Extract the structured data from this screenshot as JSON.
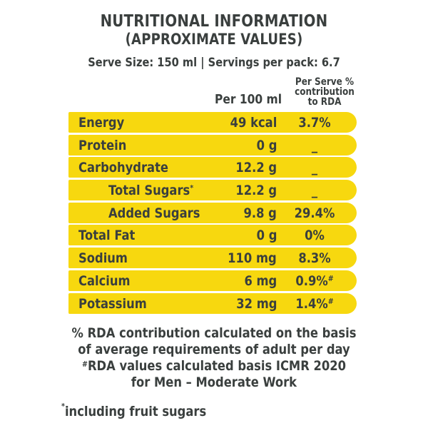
{
  "header": {
    "title": "NUTRITIONAL INFORMATION",
    "subtitle": "(APPROXIMATE VALUES)",
    "serve_size": "Serve Size: 150 ml | Servings per pack: 6.7"
  },
  "columns": {
    "per100": "Per 100 ml",
    "rda_line1": "Per Serve %",
    "rda_line2": "contribution",
    "rda_line3": "to RDA"
  },
  "rows": [
    {
      "name": "Energy",
      "per100": "49 kcal",
      "rda": "3.7%",
      "rda_mark": ""
    },
    {
      "name": "Protein",
      "per100": "0 g",
      "rda": "_",
      "rda_mark": ""
    },
    {
      "name": "Carbohydrate",
      "per100": "12.2 g",
      "rda": "_",
      "rda_mark": ""
    },
    {
      "name": "Total Sugars",
      "name_mark": "*",
      "per100": "12.2 g",
      "rda": "_",
      "rda_mark": ""
    },
    {
      "name": "Added Sugars",
      "per100": "9.8 g",
      "rda": "29.4%",
      "rda_mark": ""
    },
    {
      "name": "Total Fat",
      "per100": "0 g",
      "rda": "0%",
      "rda_mark": ""
    },
    {
      "name": "Sodium",
      "per100": "110 mg",
      "rda": "8.3%",
      "rda_mark": ""
    },
    {
      "name": "Calcium",
      "per100": "6 mg",
      "rda": "0.9%",
      "rda_mark": "#"
    },
    {
      "name": "Potassium",
      "per100": "32 mg",
      "rda": "1.4%",
      "rda_mark": "#"
    }
  ],
  "notes": {
    "line1": "% RDA contribution calculated on the basis",
    "line2": "of average requirements of adult per day",
    "line3_mark": "#",
    "line3": "RDA values calculated basis ICMR 2020",
    "line4": "for Men – Moderate  Work"
  },
  "footnote": {
    "mark": "*",
    "text": "including fruit sugars"
  },
  "colors": {
    "row_fill": "#f7d80f",
    "text": "#3a3f3e"
  }
}
